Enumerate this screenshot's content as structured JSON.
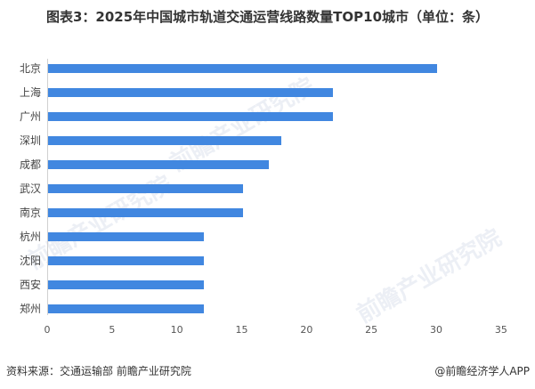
{
  "title": "图表3：2025年中国城市轨道交通运营线路数量TOP10城市（单位：条）",
  "chart_data": {
    "type": "bar",
    "orientation": "horizontal",
    "title": "图表3：2025年中国城市轨道交通运营线路数量TOP10城市（单位：条）",
    "categories": [
      "北京",
      "上海",
      "广州",
      "深圳",
      "成都",
      "武汉",
      "南京",
      "杭州",
      "沈阳",
      "西安",
      "郑州"
    ],
    "values": [
      30,
      22,
      22,
      18,
      17,
      15,
      15,
      12,
      12,
      12,
      12
    ],
    "xlabel": "",
    "ylabel": "",
    "xlim": [
      0,
      35
    ],
    "xticks": [
      "0",
      "5",
      "10",
      "15",
      "20",
      "25",
      "30",
      "35"
    ],
    "grid": false,
    "legend": "none",
    "bar_color": "#4187e0"
  },
  "footer": {
    "source": "资料来源：交通运输部 前瞻产业研究院",
    "brand": "@前瞻经济学人APP"
  },
  "watermark": "前瞻产业研究院"
}
